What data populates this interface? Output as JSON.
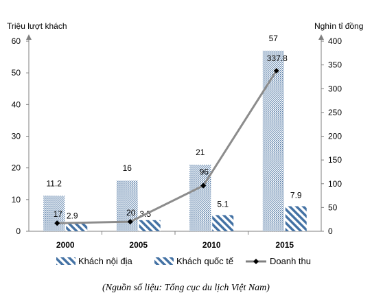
{
  "chart_data": {
    "type": "bar",
    "categories": [
      "2000",
      "2005",
      "2010",
      "2015"
    ],
    "y_left_label": "Triệu  lượt khách",
    "y_right_label": "Nghìn tỉ đồng",
    "y_left_range": [
      0,
      60
    ],
    "y_left_ticks": [
      "0",
      "10",
      "20",
      "30",
      "40",
      "50",
      "60"
    ],
    "y_right_range": [
      0,
      400
    ],
    "y_right_ticks": [
      "0",
      "50",
      "100",
      "150",
      "200",
      "250",
      "300",
      "350",
      "400"
    ],
    "series": [
      {
        "name": "Khách nội địa",
        "axis": "left",
        "kind": "bar",
        "pattern": "dots",
        "color": "#5b7fa8",
        "values": [
          11.2,
          16,
          21,
          57
        ],
        "labels": [
          "11.2",
          "16",
          "21",
          "57"
        ]
      },
      {
        "name": "Khách quốc tế",
        "axis": "left",
        "kind": "bar",
        "pattern": "diagonal",
        "color": "#4472a4",
        "values": [
          2.9,
          3.5,
          5.1,
          7.9
        ],
        "labels": [
          "2.9",
          "3.5",
          "5.1",
          "7.9"
        ]
      },
      {
        "name": "Doanh thu",
        "axis": "right",
        "kind": "line",
        "marker": "diamond",
        "color": "#808080",
        "values": [
          17,
          20,
          96,
          337.8
        ],
        "labels": [
          "17",
          "20",
          "96",
          "337.8"
        ]
      }
    ],
    "legend": [
      "Khách nội địa",
      "Khách quốc tế",
      "Doanh thu"
    ],
    "legend_position": "bottom",
    "grid": false
  },
  "source_note": "(Nguồn số liệu: Tổng cục du lịch Việt Nam)"
}
